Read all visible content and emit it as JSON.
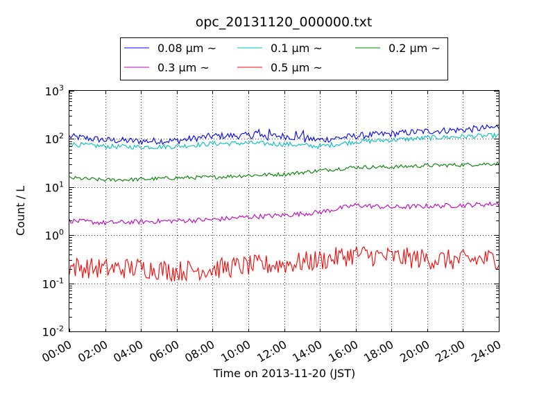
{
  "chart_data": {
    "type": "line",
    "title": "opc_20131120_000000.txt",
    "xlabel": "Time on 2013-11-20 (JST)",
    "ylabel": "Count / L",
    "x_ticks": [
      "00:00",
      "02:00",
      "04:00",
      "06:00",
      "08:00",
      "10:00",
      "12:00",
      "14:00",
      "16:00",
      "18:00",
      "20:00",
      "22:00",
      "24:00"
    ],
    "xlim_hours": [
      0,
      24
    ],
    "y_scale": "log",
    "ylim": [
      0.01,
      1000
    ],
    "y_tick_bases": [
      "10",
      "10",
      "10",
      "10",
      "10",
      "10"
    ],
    "y_tick_exponents": [
      "-2",
      "-1",
      "0",
      "1",
      "2",
      "3"
    ],
    "grid": true,
    "legend_position": "top-center",
    "legend_unit": "μm ~",
    "series": [
      {
        "name": "0.08",
        "color": "#0000ff",
        "noise": 0.07,
        "spikes": [
          [
            10.3,
            11.2,
            0.12
          ],
          [
            12.6,
            13.2,
            0.15
          ]
        ],
        "hours": [
          0,
          2,
          4,
          6,
          8,
          10,
          12,
          14,
          16,
          18,
          20,
          22,
          24
        ],
        "values": [
          112,
          95,
          90,
          92,
          115,
          118,
          115,
          95,
          115,
          128,
          145,
          155,
          175
        ]
      },
      {
        "name": "0.1",
        "color": "#00bfbf",
        "noise": 0.05,
        "spikes": [],
        "hours": [
          0,
          2,
          4,
          6,
          8,
          10,
          12,
          14,
          16,
          18,
          20,
          22,
          24
        ],
        "values": [
          78,
          70,
          68,
          70,
          80,
          82,
          78,
          70,
          88,
          95,
          105,
          112,
          118
        ]
      },
      {
        "name": "0.2",
        "color": "#008000",
        "noise": 0.04,
        "spikes": [],
        "hours": [
          0,
          2,
          4,
          6,
          8,
          10,
          12,
          14,
          16,
          18,
          20,
          22,
          24
        ],
        "values": [
          15.5,
          14,
          14.5,
          15.5,
          16,
          17.5,
          18.5,
          22,
          26,
          26,
          28,
          29,
          31
        ]
      },
      {
        "name": "0.3",
        "color": "#bf00bf",
        "noise": 0.05,
        "spikes": [],
        "hours": [
          0,
          2,
          4,
          6,
          8,
          10,
          12,
          14,
          16,
          18,
          20,
          22,
          24
        ],
        "values": [
          2.0,
          1.8,
          1.9,
          2.0,
          2.1,
          2.4,
          2.6,
          3.0,
          4.2,
          3.8,
          4.0,
          4.2,
          4.5
        ]
      },
      {
        "name": "0.5",
        "color": "#ff0000",
        "noise": 0.22,
        "spikes": [],
        "hours": [
          0,
          2,
          4,
          6,
          8,
          10,
          12,
          14,
          16,
          18,
          20,
          22,
          24
        ],
        "values": [
          0.22,
          0.2,
          0.21,
          0.18,
          0.2,
          0.23,
          0.25,
          0.3,
          0.4,
          0.35,
          0.32,
          0.3,
          0.33
        ]
      }
    ]
  }
}
